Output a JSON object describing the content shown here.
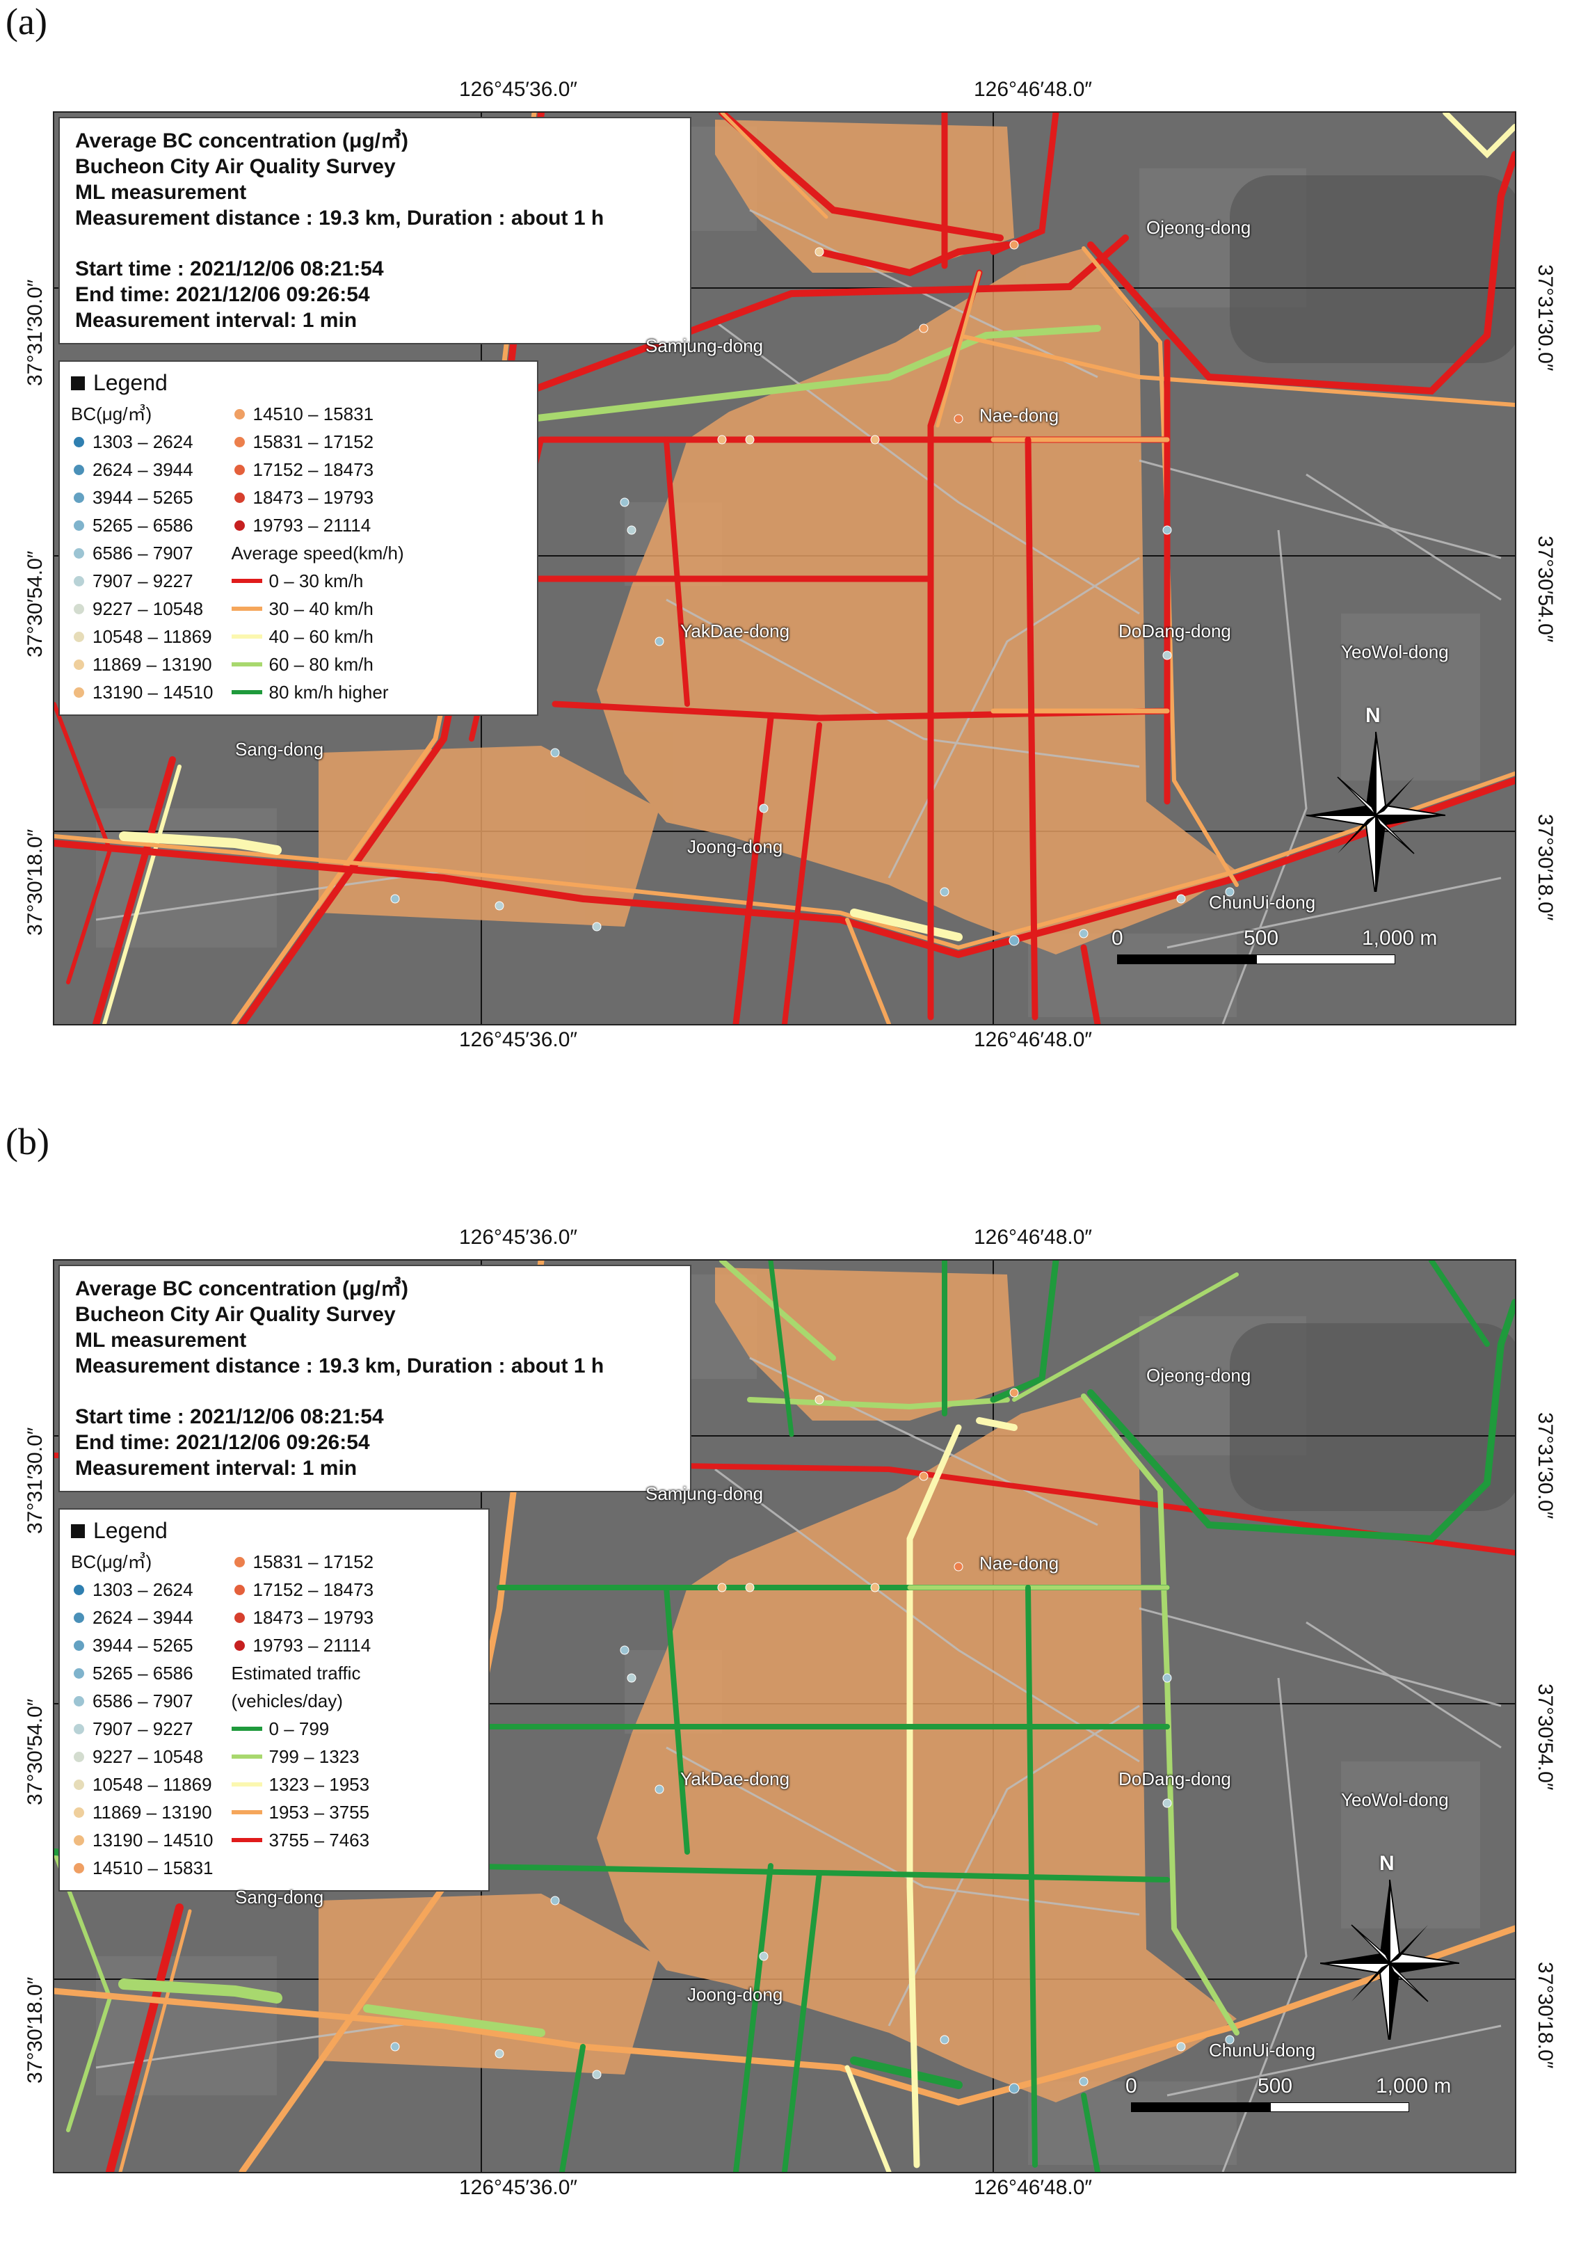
{
  "panels": [
    {
      "id": "a",
      "label": "(a)",
      "top_coords": [
        "126°45′36.0″",
        "126°46′48.0″"
      ],
      "bottom_coords": [
        "126°45′36.0″",
        "126°46′48.0″"
      ],
      "left_coords": [
        "37°31′30.0″",
        "37°30′54.0″",
        "37°30′18.0″"
      ],
      "right_coords": [
        "37°31′30.0″",
        "37°30′54.0″",
        "37°30′18.0″"
      ],
      "info": {
        "line1": "Average BC concentration (μg/㎥)",
        "line2": "Bucheon City Air Quality Survey",
        "line3": "ML measurement",
        "line4": "Measurement distance : 19.3 km, Duration : about 1 h",
        "line5": "Start time : 2021/12/06 08:21:54",
        "line6": "End time: 2021/12/06 09:26:54",
        "line7": "Measurement interval: 1 min"
      },
      "legend": {
        "title": "Legend",
        "bc_title": "BC(μg/㎥)",
        "bc_col1": [
          "1303 – 2624",
          "2624 – 3944",
          "3944 – 5265",
          "5265 – 6586",
          "6586 – 7907",
          "7907 – 9227",
          "9227 – 10548",
          "10548 – 11869",
          "11869 – 13190",
          "13190 – 14510"
        ],
        "bc_col2": [
          "14510 – 15831",
          "15831 – 17152",
          "17152 – 18473",
          "18473 – 19793",
          "19793 – 21114"
        ],
        "line_title": "Average speed(km/h)",
        "lines": [
          "0 – 30 km/h",
          "30 – 40 km/h",
          "40 – 60 km/h",
          "60 – 80 km/h",
          "80 km/h higher"
        ]
      },
      "places": [
        "Ojeong-dong",
        "Samjung-dong",
        "Nae-dong",
        "YakDae-dong",
        "DoDang-dong",
        "YeoWol-dong",
        "Sang-dong",
        "Joong-dong",
        "ChunUi-dong"
      ],
      "scale": {
        "zero": "0",
        "mid": "500",
        "end": "1,000 m"
      },
      "compass": "N"
    },
    {
      "id": "b",
      "label": "(b)",
      "top_coords": [
        "126°45′36.0″",
        "126°46′48.0″"
      ],
      "bottom_coords": [
        "126°45′36.0″",
        "126°46′48.0″"
      ],
      "left_coords": [
        "37°31′30.0″",
        "37°30′54.0″",
        "37°30′18.0″"
      ],
      "right_coords": [
        "37°31′30.0″",
        "37°30′54.0″",
        "37°30′18.0″"
      ],
      "info": {
        "line1": "Average BC concentration (μg/㎥)",
        "line2": "Bucheon City Air Quality Survey",
        "line3": "ML measurement",
        "line4": "Measurement distance : 19.3 km, Duration : about 1 h",
        "line5": "Start time : 2021/12/06 08:21:54",
        "line6": "End time: 2021/12/06 09:26:54",
        "line7": "Measurement interval: 1 min"
      },
      "legend": {
        "title": "Legend",
        "bc_title": "BC(μg/㎥)",
        "bc_col1": [
          "1303 – 2624",
          "2624 – 3944",
          "3944 – 5265",
          "5265 – 6586",
          "6586 – 7907",
          "7907 – 9227",
          "9227 – 10548",
          "10548 – 11869",
          "11869 – 13190",
          "13190 – 14510",
          "14510 – 15831"
        ],
        "bc_col2": [
          "15831 – 17152",
          "17152 – 18473",
          "18473 – 19793",
          "19793 – 21114"
        ],
        "line_title": "Estimated traffic",
        "line_subtitle": "(vehicles/day)",
        "lines": [
          "0 – 799",
          "799 – 1323",
          "1323 – 1953",
          "1953 – 3755",
          "3755 – 7463"
        ]
      },
      "places": [
        "Ojeong-dong",
        "Samjung-dong",
        "Nae-dong",
        "YakDae-dong",
        "DoDang-dong",
        "YeoWol-dong",
        "Sang-dong",
        "Joong-dong",
        "ChunUi-dong"
      ],
      "scale": {
        "zero": "0",
        "mid": "500",
        "end": "1,000 m"
      },
      "compass": "N"
    }
  ],
  "colors": {
    "bc_scale": [
      "#2f7fb0",
      "#4a90b8",
      "#63a1c2",
      "#7fb3cc",
      "#9cc4d3",
      "#b8d2d6",
      "#d3dccf",
      "#e6dcb8",
      "#efcf9c",
      "#f0bb7f",
      "#ef9f63",
      "#ec7f4c",
      "#e4603b",
      "#d63f2d",
      "#c62020"
    ],
    "speed_lines": [
      "#e01b1b",
      "#f5a65b",
      "#fbf7b0",
      "#a8d86e",
      "#1f9a3c"
    ],
    "traffic_lines": [
      "#1f9a3c",
      "#a8d86e",
      "#fbf7b0",
      "#f5a65b",
      "#e01b1b"
    ],
    "district_fill": "#e8a165",
    "map_background": "#6c6c6c"
  }
}
